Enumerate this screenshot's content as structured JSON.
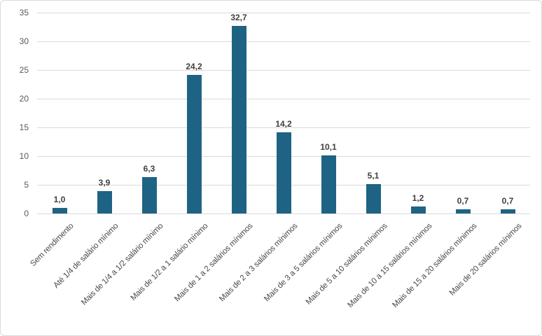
{
  "chart_data": {
    "type": "bar",
    "title": "",
    "xlabel": "",
    "ylabel": "",
    "categories": [
      "Sem rendimento",
      "Até 1/4 de salário mínimo",
      "Mais de 1/4 a 1/2 salário mínimo",
      "Mais de 1/2 a 1 salário mínimo",
      "Mais de 1 a 2 salários mínimos",
      "Mais de 2 a 3 salários mínimos",
      "Mais de 3 a 5 salários mínimos",
      "Mais de 5 a 10 salários mínimos",
      "Mais de 10 a 15 salários mínimos",
      "Mais de 15 a 20 salários mínimos",
      "Mais de 20 salários mínimos"
    ],
    "values": [
      1.0,
      3.9,
      6.3,
      24.2,
      32.7,
      14.2,
      10.1,
      5.1,
      1.2,
      0.7,
      0.7
    ],
    "value_labels": [
      "1,0",
      "3,9",
      "6,3",
      "24,2",
      "32,7",
      "14,2",
      "10,1",
      "5,1",
      "1,2",
      "0,7",
      "0,7"
    ],
    "ylim": [
      0,
      35
    ],
    "yticks": [
      0,
      5,
      10,
      15,
      20,
      25,
      30,
      35
    ],
    "grid": "horizontal",
    "legend": "none",
    "colors": {
      "bar": "#1f6384",
      "gridline": "#d9d9d9",
      "axis_tick_label": "#595959",
      "value_label": "#3f3f3f",
      "category_label": "#4a4a4a",
      "border": "#d9d9d9",
      "background": "#ffffff"
    }
  }
}
